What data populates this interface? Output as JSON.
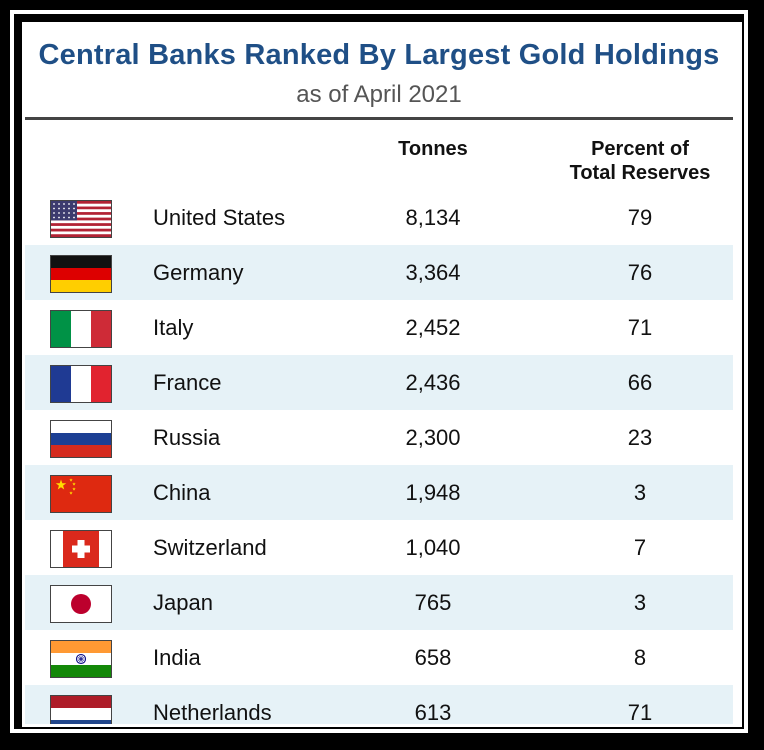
{
  "chart_data": {
    "type": "table",
    "title": "Central Banks Ranked By Largest Gold Holdings",
    "subtitle": "as of April 2021",
    "columns": [
      "",
      "Tonnes",
      "Percent of Total Reserves"
    ],
    "column_headers": {
      "tonnes": "Tonnes",
      "percent_line1": "Percent of",
      "percent_line2": "Total Reserves"
    },
    "rows": [
      {
        "country": "United States",
        "flag": "us-flag-icon",
        "tonnes": "8,134",
        "percent": "79"
      },
      {
        "country": "Germany",
        "flag": "germany-flag-icon",
        "tonnes": "3,364",
        "percent": "76"
      },
      {
        "country": "Italy",
        "flag": "italy-flag-icon",
        "tonnes": "2,452",
        "percent": "71"
      },
      {
        "country": "France",
        "flag": "france-flag-icon",
        "tonnes": "2,436",
        "percent": "66"
      },
      {
        "country": "Russia",
        "flag": "russia-flag-icon",
        "tonnes": "2,300",
        "percent": "23"
      },
      {
        "country": "China",
        "flag": "china-flag-icon",
        "tonnes": "1,948",
        "percent": "3"
      },
      {
        "country": "Switzerland",
        "flag": "switzerland-flag-icon",
        "tonnes": "1,040",
        "percent": "7"
      },
      {
        "country": "Japan",
        "flag": "japan-flag-icon",
        "tonnes": "765",
        "percent": "3"
      },
      {
        "country": "India",
        "flag": "india-flag-icon",
        "tonnes": "658",
        "percent": "8"
      },
      {
        "country": "Netherlands",
        "flag": "netherlands-flag-icon",
        "tonnes": "613",
        "percent": "71"
      }
    ]
  },
  "colors": {
    "title": "#1f4f86",
    "row_alt": "#e6f2f7"
  }
}
